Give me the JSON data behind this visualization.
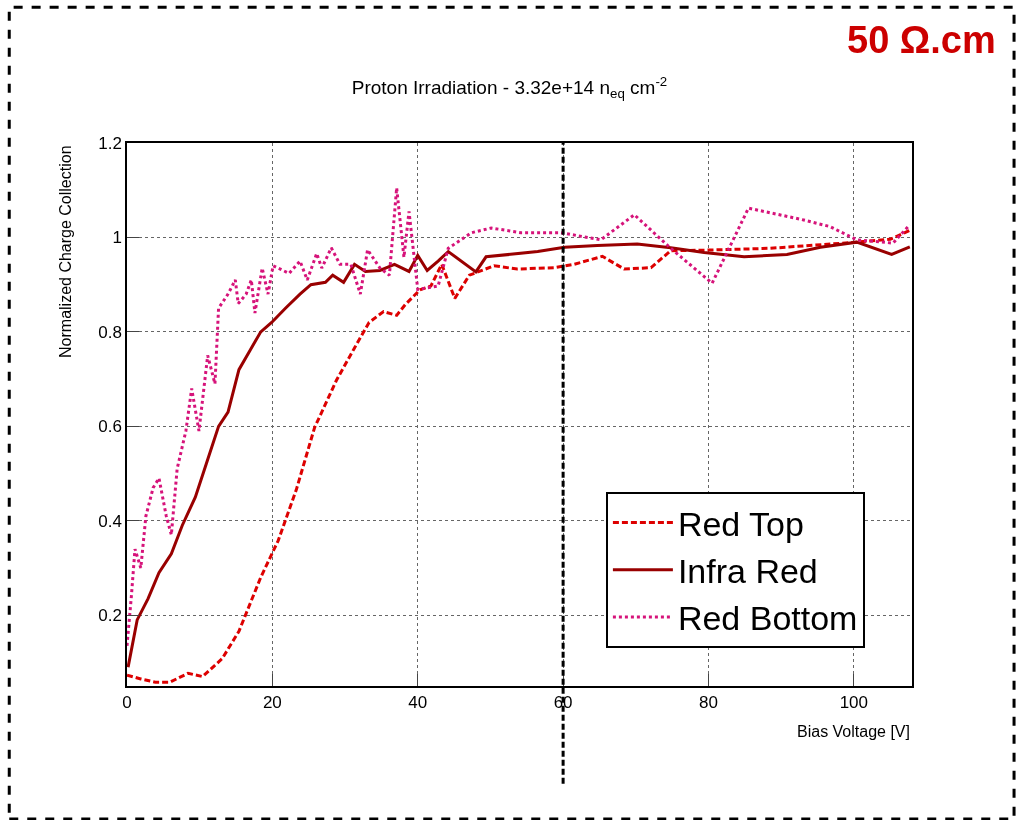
{
  "chart_data": {
    "type": "line",
    "title": "Proton Irradiation - 3.32e+14 n$_{eq}$ cm$^{-2}$",
    "xlabel": "Bias Voltage [V]",
    "ylabel": "Normalized Charge Collection",
    "annotations": [
      "50 Ω.cm"
    ],
    "xlim": [
      0,
      108
    ],
    "ylim": [
      0.05,
      1.2
    ],
    "xticks": [
      0,
      20,
      40,
      60,
      80,
      100
    ],
    "yticks": [
      0.2,
      0.4,
      0.6,
      0.8,
      1,
      1.2
    ],
    "grid": true,
    "legend": "bottom right",
    "marker": "none",
    "ref_lines": [
      {
        "axis": "x",
        "value": 60,
        "color": "#000000",
        "line_style": "dashed"
      }
    ],
    "series": [
      {
        "name": "Red Top",
        "color": "#dd0000",
        "line_style": "dashed",
        "x": [
          0,
          1.9,
          3.9,
          5.9,
          8.4,
          10.4,
          13.1,
          15.4,
          18.4,
          20.8,
          23.3,
          25.8,
          28.8,
          31.3,
          33.3,
          35.3,
          37.1,
          38.3,
          40.3,
          41.8,
          43.3,
          45.1,
          47.1,
          50.5,
          53.7,
          58.8,
          61.5,
          65.4,
          68.4,
          72.1,
          74.8,
          79.4,
          88.5,
          100.4,
          105,
          107.7
        ],
        "values": [
          0.073,
          0.065,
          0.058,
          0.058,
          0.077,
          0.07,
          0.108,
          0.166,
          0.28,
          0.358,
          0.466,
          0.597,
          0.697,
          0.766,
          0.82,
          0.843,
          0.835,
          0.858,
          0.889,
          0.897,
          0.943,
          0.871,
          0.92,
          0.94,
          0.933,
          0.936,
          0.943,
          0.96,
          0.933,
          0.936,
          0.972,
          0.973,
          0.977,
          0.99,
          0.996,
          1.015
        ]
      },
      {
        "name": "Infra Red",
        "color": "#990000",
        "line_style": "solid",
        "x": [
          0.15,
          1.4,
          2.9,
          4.4,
          6.1,
          7.6,
          9.4,
          10.9,
          12.6,
          13.9,
          15.4,
          16.9,
          18.4,
          19.9,
          21.8,
          23.8,
          25.3,
          27.3,
          28.3,
          29.8,
          31.3,
          32.8,
          34.8,
          36.8,
          38.8,
          40,
          41.3,
          42.8,
          44.2,
          48,
          49.4,
          56.5,
          60.2,
          64.7,
          70.2,
          74.8,
          79.4,
          84.9,
          90.8,
          95.4,
          100.4,
          105.2,
          107.7
        ],
        "values": [
          0.09,
          0.19,
          0.235,
          0.29,
          0.33,
          0.39,
          0.45,
          0.52,
          0.6,
          0.63,
          0.72,
          0.76,
          0.8,
          0.82,
          0.85,
          0.88,
          0.9,
          0.905,
          0.92,
          0.905,
          0.943,
          0.928,
          0.93,
          0.943,
          0.928,
          0.962,
          0.93,
          0.95,
          0.97,
          0.927,
          0.959,
          0.97,
          0.979,
          0.983,
          0.986,
          0.978,
          0.968,
          0.959,
          0.964,
          0.979,
          0.99,
          0.964,
          0.98
        ]
      },
      {
        "name": "Red Bottom",
        "color": "#d6137a",
        "line_style": "dotted",
        "x": [
          0,
          0.6,
          1.1,
          1.9,
          2.6,
          3.6,
          4.4,
          5.4,
          6.1,
          6.9,
          8.1,
          8.9,
          9.9,
          11.1,
          12.1,
          12.6,
          13.9,
          14.9,
          15.3,
          16.4,
          17.1,
          17.6,
          18.6,
          19.4,
          20.1,
          22.3,
          23.8,
          24.8,
          26.1,
          26.8,
          28.1,
          29.3,
          30.8,
          32.1,
          33.1,
          34.8,
          36.1,
          37.1,
          38.1,
          38.8,
          40,
          42.8,
          44.2,
          47.4,
          50.1,
          54.2,
          59.7,
          65.2,
          69.8,
          74.8,
          80.5,
          85.5,
          93.1,
          96.7,
          100.4,
          105.4,
          107.7
        ],
        "values": [
          0.135,
          0.24,
          0.34,
          0.3,
          0.41,
          0.47,
          0.49,
          0.41,
          0.37,
          0.51,
          0.59,
          0.68,
          0.59,
          0.75,
          0.69,
          0.85,
          0.88,
          0.91,
          0.86,
          0.88,
          0.91,
          0.84,
          0.935,
          0.88,
          0.94,
          0.924,
          0.95,
          0.91,
          0.966,
          0.935,
          0.978,
          0.943,
          0.943,
          0.88,
          0.974,
          0.935,
          0.92,
          1.105,
          0.958,
          1.055,
          0.89,
          0.897,
          0.977,
          1.01,
          1.02,
          1.01,
          1.01,
          0.995,
          1.048,
          0.977,
          0.903,
          1.062,
          1.037,
          1.023,
          0.995,
          0.988,
          1.027
        ]
      }
    ]
  }
}
